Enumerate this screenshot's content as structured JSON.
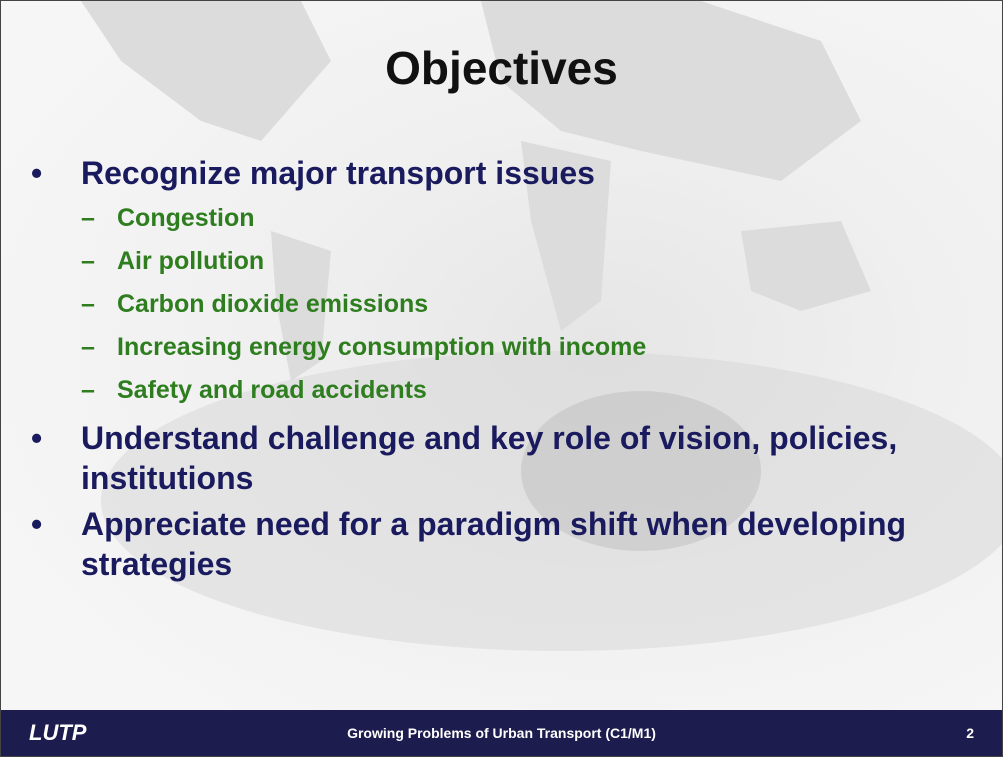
{
  "slide": {
    "title": "Objectives",
    "bullets": [
      {
        "text": "Recognize major transport issues",
        "subitems": [
          "Congestion",
          "Air pollution",
          "Carbon dioxide emissions",
          "Increasing energy consumption with income",
          "Safety and road accidents"
        ]
      },
      {
        "text": "Understand challenge and key role of vision, policies, institutions"
      },
      {
        "text": "Appreciate need for a paradigm shift when developing strategies"
      }
    ]
  },
  "footer": {
    "logo": "LUTP",
    "caption": "Growing Problems of Urban Transport (C1/M1)",
    "page": "2"
  }
}
